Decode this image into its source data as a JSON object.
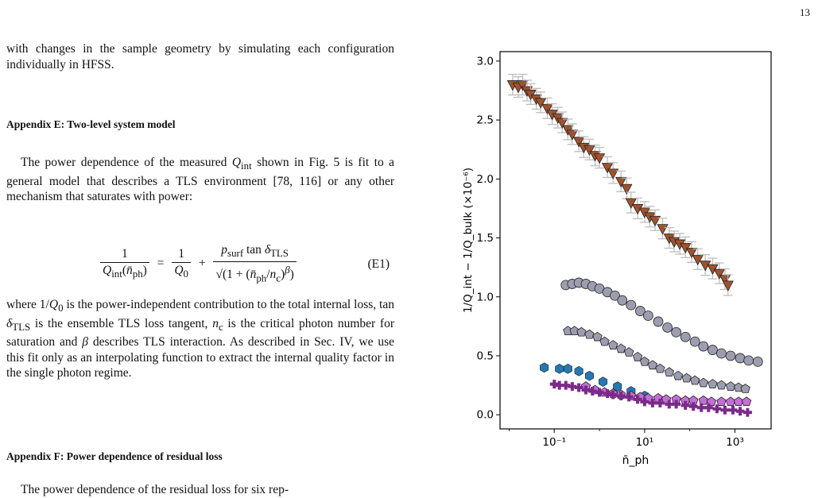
{
  "page": {
    "number": "13"
  },
  "text": {
    "intro": "with changes in the sample geometry by simulating each configuration individually in HFSS.",
    "heading_e": "Appendix E: Two-level system model",
    "para_e1": "The power dependence of the measured Q_int shown in Fig. 5 is fit to a general model that describes a TLS environment [78, 116] or any other mechanism that saturates with power:",
    "eq_label": "(E1)",
    "para_e2": "where 1/Q_0 is the power-independent contribution to the total internal loss, tan δ_TLS is the ensemble TLS loss tangent, n_c is the critical photon number for saturation and β describes TLS interaction. As described in Sec. IV, we use this fit only as an interpolating function to extract the internal quality factor in the single photon regime.",
    "heading_f": "Appendix F: Power dependence of residual loss",
    "para_f1": "The power dependence of the residual loss for six rep-"
  },
  "chart_data": {
    "type": "scatter",
    "xlabel": "n̄_ph",
    "ylabel": "1/Q_int − 1/Q_bulk (×10⁻⁶)",
    "xscale": "log",
    "xlim": [
      0.0063,
      6300
    ],
    "ylim": [
      -0.12,
      3.08
    ],
    "xticks": [
      {
        "value": 0.1,
        "label": "10⁻¹"
      },
      {
        "value": 10,
        "label": "10¹"
      },
      {
        "value": 1000,
        "label": "10³"
      }
    ],
    "yticks": [
      0.0,
      0.5,
      1.0,
      1.5,
      2.0,
      2.5,
      3.0
    ],
    "grid": false,
    "series": [
      {
        "marker": "triangle-down",
        "color": "#a0522d",
        "errorbars": true,
        "points": [
          [
            0.012,
            2.8
          ],
          [
            0.016,
            2.78
          ],
          [
            0.02,
            2.8
          ],
          [
            0.025,
            2.75
          ],
          [
            0.03,
            2.72
          ],
          [
            0.04,
            2.68
          ],
          [
            0.05,
            2.65
          ],
          [
            0.07,
            2.6
          ],
          [
            0.09,
            2.55
          ],
          [
            0.12,
            2.52
          ],
          [
            0.15,
            2.48
          ],
          [
            0.2,
            2.42
          ],
          [
            0.25,
            2.38
          ],
          [
            0.35,
            2.32
          ],
          [
            0.45,
            2.27
          ],
          [
            0.6,
            2.25
          ],
          [
            0.8,
            2.2
          ],
          [
            1.0,
            2.18
          ],
          [
            1.5,
            2.1
          ],
          [
            2.0,
            2.05
          ],
          [
            3.0,
            1.98
          ],
          [
            4.0,
            1.92
          ],
          [
            5.0,
            1.8
          ],
          [
            7.0,
            1.75
          ],
          [
            10,
            1.72
          ],
          [
            13,
            1.68
          ],
          [
            17,
            1.65
          ],
          [
            25,
            1.58
          ],
          [
            35,
            1.5
          ],
          [
            45,
            1.47
          ],
          [
            60,
            1.45
          ],
          [
            80,
            1.42
          ],
          [
            110,
            1.38
          ],
          [
            150,
            1.32
          ],
          [
            220,
            1.27
          ],
          [
            320,
            1.24
          ],
          [
            450,
            1.2
          ],
          [
            600,
            1.15
          ],
          [
            700,
            1.1
          ]
        ]
      },
      {
        "marker": "circle",
        "color": "#9d9db0",
        "points": [
          [
            0.18,
            1.1
          ],
          [
            0.25,
            1.11
          ],
          [
            0.35,
            1.12
          ],
          [
            0.5,
            1.11
          ],
          [
            0.7,
            1.09
          ],
          [
            1.0,
            1.07
          ],
          [
            1.5,
            1.04
          ],
          [
            2.2,
            1.01
          ],
          [
            3.2,
            0.97
          ],
          [
            5,
            0.93
          ],
          [
            8,
            0.88
          ],
          [
            12,
            0.84
          ],
          [
            20,
            0.79
          ],
          [
            32,
            0.74
          ],
          [
            50,
            0.7
          ],
          [
            80,
            0.66
          ],
          [
            130,
            0.62
          ],
          [
            200,
            0.58
          ],
          [
            320,
            0.55
          ],
          [
            500,
            0.52
          ],
          [
            800,
            0.5
          ],
          [
            1300,
            0.48
          ],
          [
            2000,
            0.46
          ],
          [
            3200,
            0.45
          ]
        ]
      },
      {
        "marker": "pentagon",
        "color": "#9d9db0",
        "points": [
          [
            0.2,
            0.71
          ],
          [
            0.28,
            0.71
          ],
          [
            0.4,
            0.7
          ],
          [
            0.6,
            0.68
          ],
          [
            0.9,
            0.66
          ],
          [
            1.3,
            0.62
          ],
          [
            2.0,
            0.59
          ],
          [
            3.0,
            0.56
          ],
          [
            4.5,
            0.53
          ],
          [
            7,
            0.49
          ],
          [
            10,
            0.45
          ],
          [
            15,
            0.42
          ],
          [
            22,
            0.39
          ],
          [
            35,
            0.36
          ],
          [
            55,
            0.33
          ],
          [
            85,
            0.31
          ],
          [
            130,
            0.29
          ],
          [
            200,
            0.27
          ],
          [
            320,
            0.26
          ],
          [
            500,
            0.25
          ],
          [
            800,
            0.24
          ],
          [
            1200,
            0.23
          ],
          [
            1700,
            0.22
          ]
        ]
      },
      {
        "marker": "hexagon",
        "color": "#2378b5",
        "points": [
          [
            0.06,
            0.4
          ],
          [
            0.13,
            0.39
          ],
          [
            0.2,
            0.39
          ],
          [
            0.35,
            0.37
          ],
          [
            0.6,
            0.33
          ],
          [
            1.2,
            0.28
          ],
          [
            2.5,
            0.24
          ],
          [
            5,
            0.2
          ],
          [
            10,
            0.16
          ]
        ]
      },
      {
        "marker": "pentagon",
        "color": "#c46fd8",
        "points": [
          [
            0.5,
            0.24
          ],
          [
            0.8,
            0.21
          ],
          [
            1.3,
            0.19
          ],
          [
            2,
            0.18
          ],
          [
            3,
            0.17
          ],
          [
            5,
            0.16
          ],
          [
            8,
            0.15
          ],
          [
            12,
            0.14
          ],
          [
            20,
            0.14
          ],
          [
            30,
            0.13
          ],
          [
            50,
            0.13
          ],
          [
            80,
            0.12
          ],
          [
            120,
            0.12
          ],
          [
            200,
            0.12
          ],
          [
            300,
            0.11
          ],
          [
            500,
            0.11
          ],
          [
            800,
            0.11
          ],
          [
            1200,
            0.11
          ],
          [
            1800,
            0.11
          ]
        ]
      },
      {
        "marker": "plus",
        "color": "#7b2a8a",
        "points": [
          [
            0.1,
            0.26
          ],
          [
            0.13,
            0.25
          ],
          [
            0.18,
            0.25
          ],
          [
            0.25,
            0.24
          ],
          [
            0.35,
            0.23
          ],
          [
            0.5,
            0.21
          ],
          [
            0.7,
            0.2
          ],
          [
            1.0,
            0.19
          ],
          [
            1.5,
            0.18
          ],
          [
            2,
            0.17
          ],
          [
            3,
            0.16
          ],
          [
            4.5,
            0.15
          ],
          [
            7,
            0.13
          ],
          [
            10,
            0.11
          ],
          [
            15,
            0.1
          ],
          [
            22,
            0.1
          ],
          [
            35,
            0.09
          ],
          [
            50,
            0.09
          ],
          [
            80,
            0.08
          ],
          [
            120,
            0.07
          ],
          [
            180,
            0.06
          ],
          [
            260,
            0.06
          ],
          [
            400,
            0.05
          ],
          [
            600,
            0.04
          ],
          [
            900,
            0.04
          ],
          [
            1300,
            0.03
          ],
          [
            1900,
            0.02
          ]
        ]
      }
    ]
  }
}
